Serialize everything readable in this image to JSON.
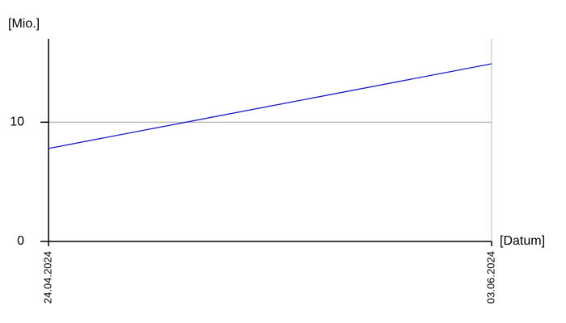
{
  "chart_data": {
    "type": "line",
    "y_label": "[Mio.]",
    "x_label": "[Datum]",
    "x": [
      "24.04.2024",
      "03.06.2024"
    ],
    "values": [
      7.8,
      14.9
    ],
    "color": "#1a1acc",
    "ylim": [
      0,
      17
    ],
    "yticks": [
      0,
      10
    ],
    "grid": true
  }
}
